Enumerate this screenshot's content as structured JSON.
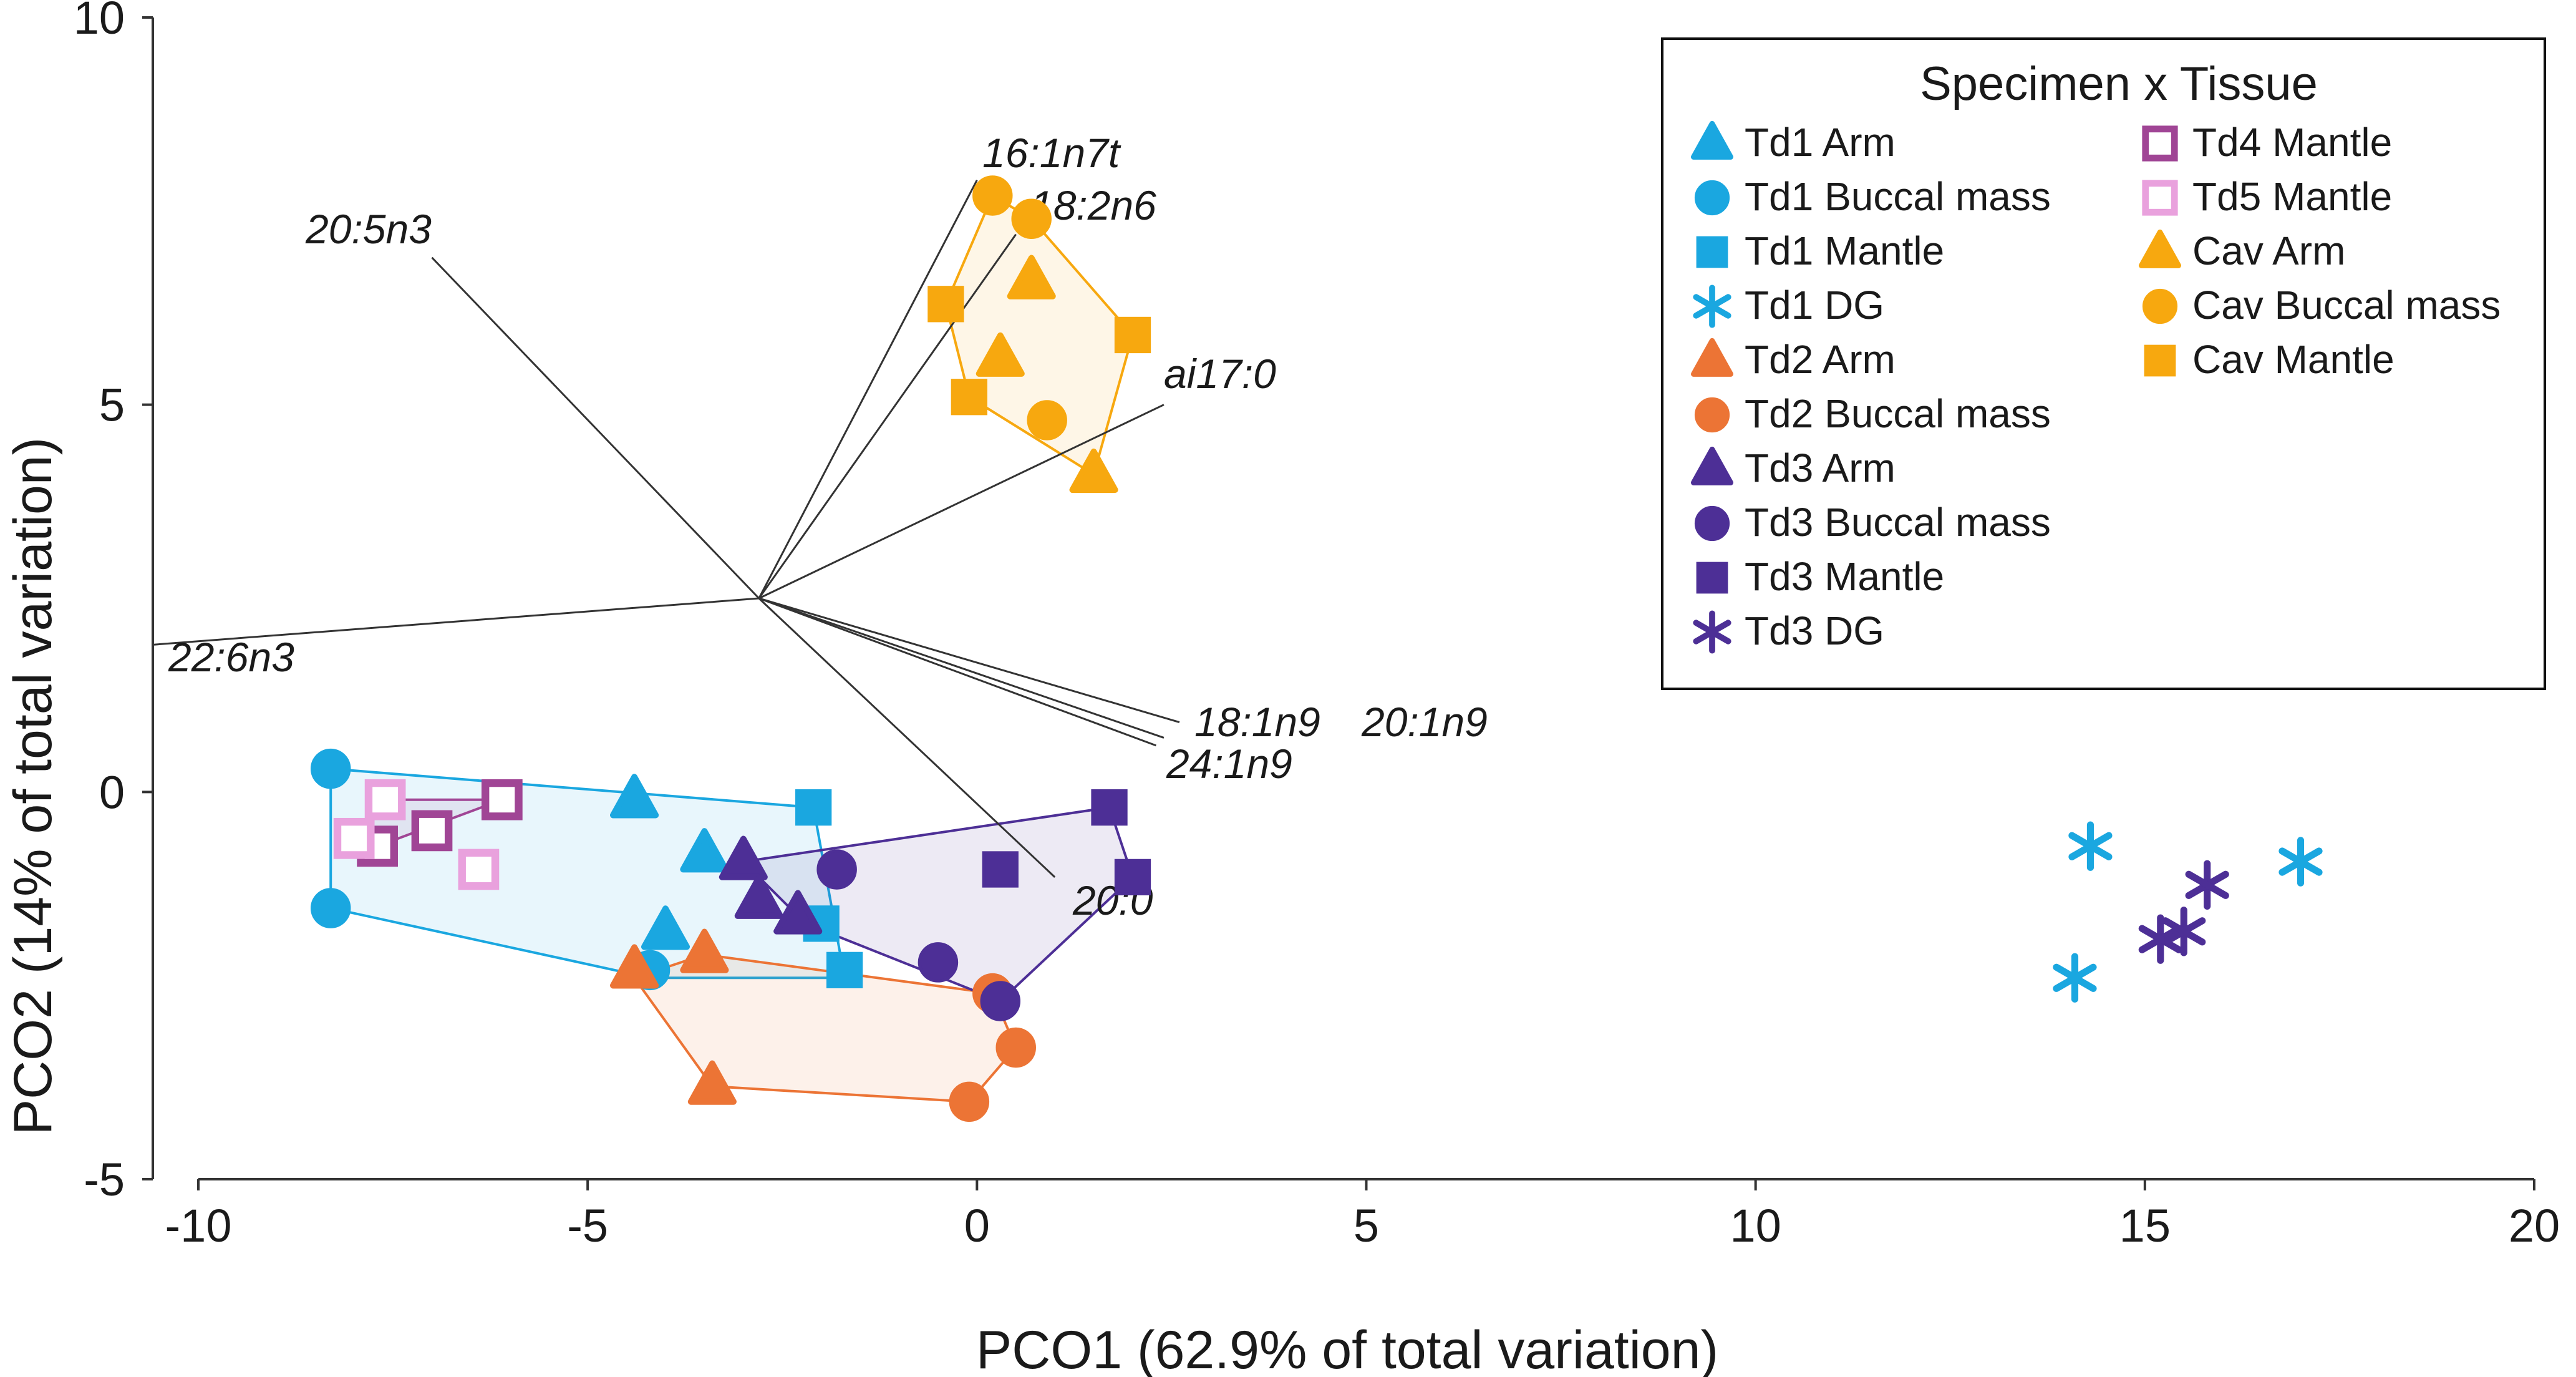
{
  "chart_data": {
    "type": "scatter",
    "title": "",
    "xlabel": "PCO1 (62.9% of total variation)",
    "ylabel": "PCO2 (14% of total variation)",
    "xlim": [
      -10,
      20
    ],
    "ylim": [
      -5,
      10
    ],
    "xticks": [
      "-10",
      "-5",
      "0",
      "5",
      "10",
      "15",
      "20"
    ],
    "yticks": [
      "-5",
      "0",
      "5",
      "10"
    ],
    "legend_title": "Specimen x Tissue",
    "legend_position": "top-right",
    "colors": {
      "td1": "#1aa7e0",
      "td2": "#ec7435",
      "td3": "#4d2f96",
      "td4": "#a04595",
      "td5": "#e9a1dd",
      "cav": "#f7a80f",
      "vector": "#333333"
    },
    "vector_origin": [
      -2.8,
      2.5
    ],
    "vectors": [
      {
        "label": "16:1n7t",
        "x": 0,
        "y": 7.9
      },
      {
        "label": "18:2n6",
        "x": 0.5,
        "y": 7.2
      },
      {
        "label": "20:5n3",
        "x": -7.0,
        "y": 6.9
      },
      {
        "label": "ai17:0",
        "x": 2.4,
        "y": 5.0
      },
      {
        "label": "22:6n3",
        "x": -10.6,
        "y": 1.9
      },
      {
        "label": "18:1n9",
        "x": 2.6,
        "y": 0.9
      },
      {
        "label": "20:1n9",
        "x": 2.4,
        "y": 0.7
      },
      {
        "label": "24:1n9",
        "x": 2.3,
        "y": 0.6
      },
      {
        "label": "20:0",
        "x": 1.0,
        "y": -1.1
      }
    ],
    "hulls": [
      {
        "group": "Td1",
        "color": "td1",
        "points": [
          [
            -8.3,
            0.3
          ],
          [
            -2.1,
            -0.2
          ],
          [
            -1.7,
            -2.4
          ],
          [
            -4.2,
            -2.4
          ],
          [
            -8.3,
            -1.5
          ]
        ]
      },
      {
        "group": "Td2",
        "color": "td2",
        "points": [
          [
            -4.4,
            -2.4
          ],
          [
            -3.5,
            -2.1
          ],
          [
            0.2,
            -2.6
          ],
          [
            0.5,
            -3.3
          ],
          [
            -0.1,
            -4.0
          ],
          [
            -3.4,
            -3.8
          ]
        ]
      },
      {
        "group": "Td3",
        "color": "td3",
        "points": [
          [
            -3.0,
            -0.9
          ],
          [
            1.7,
            -0.2
          ],
          [
            2.0,
            -1.1
          ],
          [
            0.3,
            -2.7
          ],
          [
            -2.2,
            -1.7
          ]
        ]
      },
      {
        "group": "Td4/Td5",
        "color": "td4",
        "points": [
          [
            -8.0,
            -0.6
          ],
          [
            -7.6,
            -0.1
          ],
          [
            -6.1,
            -0.1
          ],
          [
            -7.7,
            -0.7
          ]
        ]
      },
      {
        "group": "Cav",
        "color": "cav",
        "points": [
          [
            0.2,
            7.7
          ],
          [
            0.7,
            7.4
          ],
          [
            2.0,
            5.9
          ],
          [
            1.5,
            4.1
          ],
          [
            -0.1,
            5.1
          ],
          [
            -0.4,
            6.3
          ]
        ]
      }
    ],
    "series": [
      {
        "name": "Td1 Arm",
        "marker": "triangle",
        "filled": true,
        "color": "td1",
        "points": [
          [
            -4.4,
            -0.1
          ],
          [
            -3.5,
            -0.8
          ],
          [
            -4.0,
            -1.8
          ]
        ]
      },
      {
        "name": "Td1 Buccal mass",
        "marker": "circle",
        "filled": true,
        "color": "td1",
        "points": [
          [
            -8.3,
            0.3
          ],
          [
            -8.3,
            -1.5
          ],
          [
            -4.2,
            -2.3
          ]
        ]
      },
      {
        "name": "Td1 Mantle",
        "marker": "square",
        "filled": true,
        "color": "td1",
        "points": [
          [
            -2.1,
            -0.2
          ],
          [
            -1.7,
            -2.3
          ],
          [
            -2.0,
            -1.7
          ]
        ]
      },
      {
        "name": "Td1 DG",
        "marker": "asterisk",
        "filled": false,
        "color": "td1",
        "points": [
          [
            14.3,
            -0.7
          ],
          [
            14.1,
            -2.4
          ],
          [
            17.0,
            -0.9
          ]
        ]
      },
      {
        "name": "Td2 Arm",
        "marker": "triangle",
        "filled": true,
        "color": "td2",
        "points": [
          [
            -4.4,
            -2.3
          ],
          [
            -3.5,
            -2.1
          ],
          [
            -3.4,
            -3.8
          ]
        ]
      },
      {
        "name": "Td2 Buccal mass",
        "marker": "circle",
        "filled": true,
        "color": "td2",
        "points": [
          [
            0.2,
            -2.6
          ],
          [
            0.5,
            -3.3
          ],
          [
            -0.1,
            -4.0
          ]
        ]
      },
      {
        "name": "Td3 Arm",
        "marker": "triangle",
        "filled": true,
        "color": "td3",
        "points": [
          [
            -3.0,
            -0.9
          ],
          [
            -2.8,
            -1.4
          ],
          [
            -2.3,
            -1.6
          ]
        ]
      },
      {
        "name": "Td3 Buccal mass",
        "marker": "circle",
        "filled": true,
        "color": "td3",
        "points": [
          [
            -1.8,
            -1.0
          ],
          [
            -0.5,
            -2.2
          ],
          [
            0.3,
            -2.7
          ]
        ]
      },
      {
        "name": "Td3 Mantle",
        "marker": "square",
        "filled": true,
        "color": "td3",
        "points": [
          [
            1.7,
            -0.2
          ],
          [
            0.3,
            -1.0
          ],
          [
            2.0,
            -1.1
          ]
        ]
      },
      {
        "name": "Td3 DG",
        "marker": "asterisk",
        "filled": false,
        "color": "td3",
        "points": [
          [
            15.2,
            -1.9
          ],
          [
            15.5,
            -1.8
          ],
          [
            15.8,
            -1.2
          ]
        ]
      },
      {
        "name": "Td4 Mantle",
        "marker": "square",
        "filled": false,
        "color": "td4",
        "points": [
          [
            -6.1,
            -0.1
          ],
          [
            -7.0,
            -0.5
          ],
          [
            -7.7,
            -0.7
          ]
        ]
      },
      {
        "name": "Td5 Mantle",
        "marker": "square",
        "filled": false,
        "color": "td5",
        "points": [
          [
            -8.0,
            -0.6
          ],
          [
            -7.6,
            -0.1
          ],
          [
            -6.4,
            -1.0
          ]
        ]
      },
      {
        "name": "Cav Arm",
        "marker": "triangle",
        "filled": true,
        "color": "cav",
        "points": [
          [
            0.7,
            6.6
          ],
          [
            0.3,
            5.6
          ],
          [
            1.5,
            4.1
          ]
        ]
      },
      {
        "name": "Cav Buccal mass",
        "marker": "circle",
        "filled": true,
        "color": "cav",
        "points": [
          [
            0.2,
            7.7
          ],
          [
            0.7,
            7.4
          ],
          [
            0.9,
            4.8
          ]
        ]
      },
      {
        "name": "Cav Mantle",
        "marker": "square",
        "filled": true,
        "color": "cav",
        "points": [
          [
            -0.4,
            6.3
          ],
          [
            2.0,
            5.9
          ],
          [
            -0.1,
            5.1
          ]
        ]
      }
    ]
  }
}
